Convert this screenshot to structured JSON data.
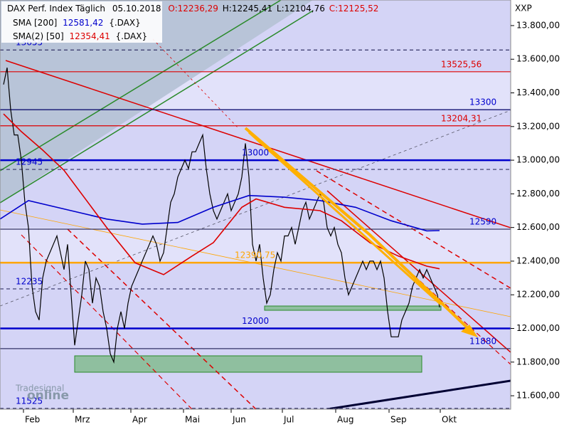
{
  "chart_data": {
    "type": "line",
    "header": {
      "instrument": "DAX Perf. Index Täglich",
      "date": "05.10.2018",
      "open": "O:12236,29",
      "high": "H:12245,41",
      "low": "L:12104,76",
      "close": "C:12125,52"
    },
    "axis_code": "XXP",
    "watermark": {
      "small": "Tradesignal",
      "big": "online"
    },
    "xlim": [
      0,
      143.6
    ],
    "xticks": [
      {
        "value": 6.6,
        "label": "Feb"
      },
      {
        "value": 20.6,
        "label": "Mrz"
      },
      {
        "value": 36.8,
        "label": "Apr"
      },
      {
        "value": 51.6,
        "label": "Mai"
      },
      {
        "value": 65,
        "label": "Jun"
      },
      {
        "value": 79.4,
        "label": "Jul"
      },
      {
        "value": 94.4,
        "label": "Aug"
      },
      {
        "value": 109.4,
        "label": "Sep"
      },
      {
        "value": 123.8,
        "label": "Okt"
      }
    ],
    "ylim": [
      11520,
      13952
    ],
    "yticks": [
      {
        "value": 11600,
        "label": "11.600,00"
      },
      {
        "value": 11800,
        "label": "11.800,00"
      },
      {
        "value": 12000,
        "label": "12.000,00"
      },
      {
        "value": 12200,
        "label": "12.200,00"
      },
      {
        "value": 12400,
        "label": "12.400,00"
      },
      {
        "value": 12600,
        "label": "12.600,00"
      },
      {
        "value": 12800,
        "label": "12.800,00"
      },
      {
        "value": 13000,
        "label": "13.000,00"
      },
      {
        "value": 13200,
        "label": "13.200,00"
      },
      {
        "value": 13400,
        "label": "13.400,00"
      },
      {
        "value": 13600,
        "label": "13.600,00"
      },
      {
        "value": 13800,
        "label": "13.800,00"
      }
    ],
    "series": [
      {
        "name": "DAX",
        "color": "#000000",
        "x": [
          1,
          2,
          3,
          4,
          5,
          6,
          7,
          8,
          9,
          10,
          11,
          12,
          13,
          14,
          15,
          16,
          17,
          18,
          19,
          20,
          21,
          22,
          23,
          24,
          25,
          26,
          27,
          28,
          29,
          30,
          31,
          32,
          33,
          34,
          35,
          36,
          37,
          38,
          39,
          40,
          41,
          42,
          43,
          44,
          45,
          46,
          47,
          48,
          49,
          50,
          51,
          52,
          53,
          54,
          55,
          56,
          57,
          58,
          59,
          60,
          61,
          62,
          63,
          64,
          65,
          66,
          67,
          68,
          69,
          70,
          71,
          72,
          73,
          74,
          75,
          76,
          77,
          78,
          79,
          80,
          81,
          82,
          83,
          84,
          85,
          86,
          87,
          88,
          89,
          90,
          91,
          92,
          93,
          94,
          95,
          96,
          97,
          98,
          99,
          100,
          101,
          102,
          103,
          104,
          105,
          106,
          107,
          108,
          109,
          110,
          111,
          112,
          113,
          114,
          115,
          116,
          117,
          118,
          119,
          120,
          121,
          122,
          123,
          123.6
        ],
        "values": [
          13450,
          13550,
          13300,
          13150,
          13150,
          13000,
          12750,
          12600,
          12250,
          12100,
          12050,
          12300,
          12400,
          12450,
          12500,
          12550,
          12450,
          12350,
          12500,
          12200,
          11900,
          12050,
          12200,
          12400,
          12350,
          12150,
          12300,
          12250,
          12100,
          12000,
          11850,
          11800,
          12000,
          12100,
          12000,
          12150,
          12250,
          12300,
          12350,
          12400,
          12450,
          12500,
          12550,
          12500,
          12400,
          12450,
          12600,
          12750,
          12800,
          12900,
          12950,
          13000,
          12950,
          13050,
          13050,
          13100,
          13150,
          12950,
          12800,
          12700,
          12650,
          12700,
          12750,
          12800,
          12700,
          12750,
          12800,
          12900,
          13100,
          12900,
          12500,
          12400,
          12500,
          12300,
          12150,
          12200,
          12350,
          12450,
          12400,
          12550,
          12550,
          12600,
          12500,
          12600,
          12700,
          12750,
          12650,
          12700,
          12750,
          12800,
          12750,
          12600,
          12550,
          12600,
          12500,
          12450,
          12300,
          12200,
          12250,
          12300,
          12350,
          12400,
          12350,
          12400,
          12400,
          12350,
          12400,
          12300,
          12100,
          11950,
          11950,
          11950,
          12050,
          12100,
          12150,
          12250,
          12300,
          12350,
          12300,
          12350,
          12300,
          12250,
          12200,
          12125.52
        ]
      },
      {
        "name": "SMA [200]",
        "value_label": "12581,42",
        "suffix": "{.DAX}",
        "color": "#0000cc",
        "x": [
          0,
          8,
          20,
          30,
          40,
          50,
          60,
          70,
          80,
          90,
          100,
          110,
          120,
          123.6
        ],
        "values": [
          12650,
          12760,
          12700,
          12650,
          12620,
          12630,
          12720,
          12790,
          12780,
          12760,
          12720,
          12640,
          12580,
          12581.42
        ]
      },
      {
        "name": "SMA(2) [50]",
        "value_label": "12354,41",
        "suffix": "{.DAX}",
        "color": "#dd0000",
        "x": [
          1,
          6,
          12,
          18,
          30,
          38,
          46,
          54,
          60,
          68,
          72,
          80,
          90,
          96,
          104,
          112,
          120,
          123.6
        ],
        "values": [
          13275,
          13170,
          13060,
          12940,
          12600,
          12390,
          12320,
          12430,
          12510,
          12720,
          12770,
          12720,
          12700,
          12640,
          12510,
          12430,
          12370,
          12354.41
        ]
      }
    ],
    "levels": [
      {
        "value": 13655,
        "color": "#333366",
        "style": "dashed"
      },
      {
        "value": 13525.56,
        "label": "13525,56",
        "color": "#dd0000",
        "style": "solid"
      },
      {
        "value": 13300,
        "color": "#000066",
        "style": "solid"
      },
      {
        "value": 13204.31,
        "label": "13204,31",
        "color": "#dd0000",
        "style": "solid"
      },
      {
        "value": 13000,
        "color": "#0000cc",
        "style": "thick"
      },
      {
        "value": 12945,
        "color": "#333366",
        "style": "dashed"
      },
      {
        "value": 12590,
        "color": "#333366",
        "style": "solid"
      },
      {
        "value": 12390.75,
        "label": "12390,75",
        "color": "#ffa500",
        "style": "thick"
      },
      {
        "value": 12235,
        "color": "#333366",
        "style": "dashed"
      },
      {
        "value": 12000,
        "color": "#0000cc",
        "style": "thick"
      },
      {
        "value": 11880,
        "color": "#333366",
        "style": "solid"
      },
      {
        "value": 11525,
        "color": "#333366",
        "style": "dashed"
      }
    ]
  }
}
